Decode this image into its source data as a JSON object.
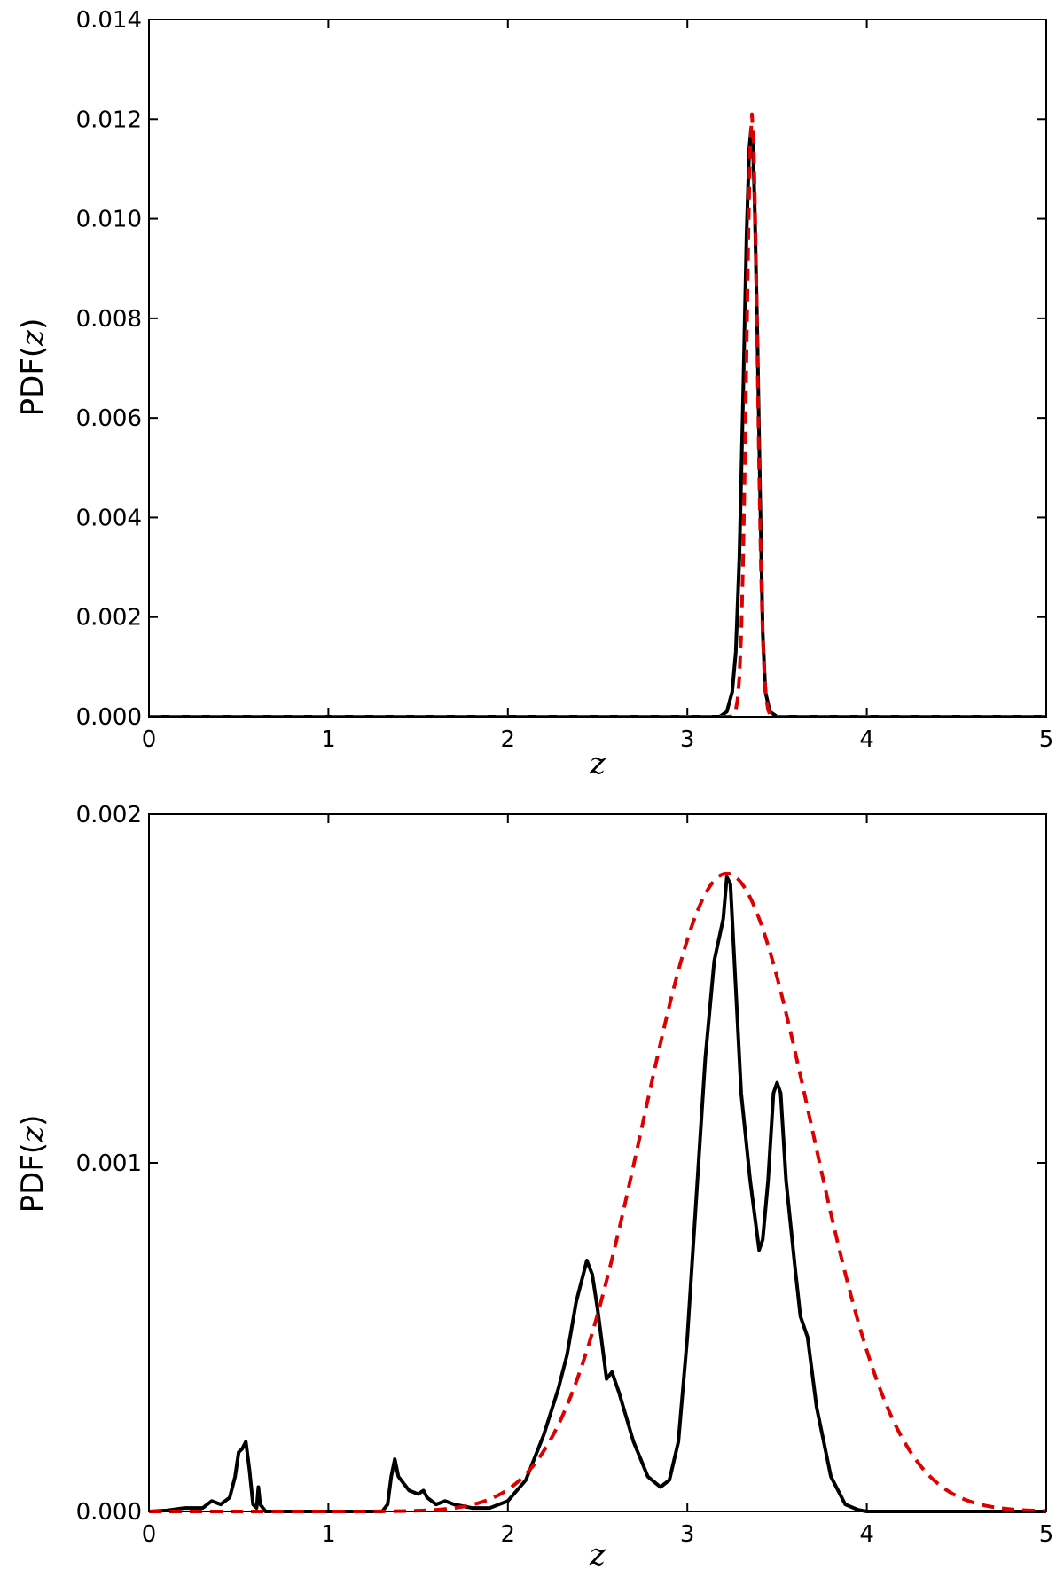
{
  "chart_data": [
    {
      "type": "line",
      "title": "",
      "xlabel": "z",
      "ylabel_prefix": "PDF(",
      "ylabel_var": "z",
      "ylabel_suffix": ")",
      "xlim": [
        0,
        5
      ],
      "ylim": [
        0,
        0.014
      ],
      "x_ticks": [
        "0",
        "1",
        "2",
        "3",
        "4",
        "5"
      ],
      "y_ticks": [
        "0.000",
        "0.002",
        "0.004",
        "0.006",
        "0.008",
        "0.010",
        "0.012",
        "0.014"
      ],
      "grid": false,
      "series": [
        {
          "style": "solid",
          "color": "#000000",
          "points": [
            [
              0,
              0
            ],
            [
              3.0,
              0
            ],
            [
              3.18,
              0
            ],
            [
              3.22,
              0.0001
            ],
            [
              3.25,
              0.0005
            ],
            [
              3.27,
              0.0013
            ],
            [
              3.29,
              0.0032
            ],
            [
              3.31,
              0.0063
            ],
            [
              3.33,
              0.0097
            ],
            [
              3.345,
              0.0114
            ],
            [
              3.355,
              0.0118
            ],
            [
              3.365,
              0.0115
            ],
            [
              3.375,
              0.0103
            ],
            [
              3.39,
              0.0077
            ],
            [
              3.405,
              0.0046
            ],
            [
              3.42,
              0.0017
            ],
            [
              3.435,
              0.0005
            ],
            [
              3.46,
              0.0001
            ],
            [
              3.5,
              0
            ],
            [
              5,
              0
            ]
          ]
        },
        {
          "style": "dashed",
          "color": "#dd0000",
          "gaussian": {
            "mu": 3.36,
            "sigma": 0.03,
            "peak": 0.0121
          },
          "range": [
            0,
            5
          ]
        }
      ]
    },
    {
      "type": "line",
      "title": "",
      "xlabel": "z",
      "ylabel_prefix": "PDF(",
      "ylabel_var": "z",
      "ylabel_suffix": ")",
      "xlim": [
        0,
        5
      ],
      "ylim": [
        0,
        0.002
      ],
      "x_ticks": [
        "0",
        "1",
        "2",
        "3",
        "4",
        "5"
      ],
      "y_ticks": [
        "0.000",
        "0.001",
        "0.002"
      ],
      "grid": false,
      "series": [
        {
          "style": "solid",
          "color": "#000000",
          "points": [
            [
              0,
              0
            ],
            [
              0.1,
              3e-06
            ],
            [
              0.2,
              1e-05
            ],
            [
              0.3,
              1e-05
            ],
            [
              0.35,
              3e-05
            ],
            [
              0.4,
              2e-05
            ],
            [
              0.45,
              4e-05
            ],
            [
              0.48,
              0.0001
            ],
            [
              0.5,
              0.00017
            ],
            [
              0.52,
              0.00018
            ],
            [
              0.54,
              0.0002
            ],
            [
              0.56,
              0.00012
            ],
            [
              0.58,
              2e-05
            ],
            [
              0.6,
              1e-05
            ],
            [
              0.61,
              7e-05
            ],
            [
              0.62,
              2e-05
            ],
            [
              0.65,
              0
            ],
            [
              1.3,
              0
            ],
            [
              1.33,
              2e-05
            ],
            [
              1.35,
              0.0001
            ],
            [
              1.37,
              0.00015
            ],
            [
              1.39,
              0.0001
            ],
            [
              1.42,
              8e-05
            ],
            [
              1.45,
              6e-05
            ],
            [
              1.5,
              5e-05
            ],
            [
              1.53,
              6e-05
            ],
            [
              1.55,
              4e-05
            ],
            [
              1.6,
              2e-05
            ],
            [
              1.65,
              3e-05
            ],
            [
              1.7,
              2e-05
            ],
            [
              1.8,
              1e-05
            ],
            [
              1.9,
              1e-05
            ],
            [
              2.0,
              3e-05
            ],
            [
              2.1,
              9e-05
            ],
            [
              2.2,
              0.00022
            ],
            [
              2.28,
              0.00035
            ],
            [
              2.33,
              0.00045
            ],
            [
              2.38,
              0.0006
            ],
            [
              2.42,
              0.00068
            ],
            [
              2.44,
              0.00072
            ],
            [
              2.47,
              0.00068
            ],
            [
              2.5,
              0.00058
            ],
            [
              2.53,
              0.00046
            ],
            [
              2.55,
              0.00038
            ],
            [
              2.58,
              0.0004
            ],
            [
              2.62,
              0.00034
            ],
            [
              2.7,
              0.0002
            ],
            [
              2.78,
              0.0001
            ],
            [
              2.85,
              7e-05
            ],
            [
              2.9,
              9e-05
            ],
            [
              2.95,
              0.0002
            ],
            [
              3.0,
              0.0005
            ],
            [
              3.05,
              0.0009
            ],
            [
              3.1,
              0.0013
            ],
            [
              3.15,
              0.00158
            ],
            [
              3.2,
              0.0017
            ],
            [
              3.22,
              0.00182
            ],
            [
              3.24,
              0.0018
            ],
            [
              3.27,
              0.0015
            ],
            [
              3.3,
              0.0012
            ],
            [
              3.35,
              0.00095
            ],
            [
              3.4,
              0.00075
            ],
            [
              3.42,
              0.00078
            ],
            [
              3.45,
              0.00095
            ],
            [
              3.48,
              0.0012
            ],
            [
              3.5,
              0.00123
            ],
            [
              3.52,
              0.0012
            ],
            [
              3.55,
              0.00095
            ],
            [
              3.6,
              0.0007
            ],
            [
              3.63,
              0.00056
            ],
            [
              3.67,
              0.0005
            ],
            [
              3.72,
              0.0003
            ],
            [
              3.8,
              0.0001
            ],
            [
              3.88,
              2e-05
            ],
            [
              3.95,
              5e-06
            ],
            [
              4.0,
              0
            ],
            [
              5,
              0
            ]
          ]
        },
        {
          "style": "dashed",
          "color": "#dd0000",
          "gaussian": {
            "mu": 3.22,
            "sigma": 0.47,
            "peak": 0.00183
          },
          "range": [
            0,
            5
          ]
        }
      ]
    }
  ]
}
